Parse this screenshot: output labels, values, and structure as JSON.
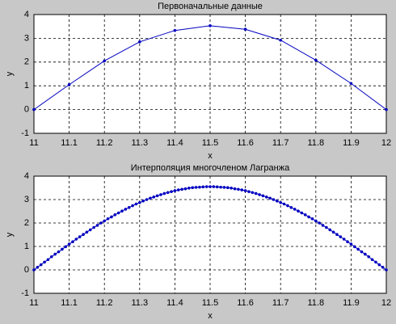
{
  "chart_data": [
    {
      "type": "line",
      "title": "Первоначальные данные",
      "xlabel": "x",
      "ylabel": "y",
      "x": [
        11,
        11.1,
        11.2,
        11.3,
        11.4,
        11.5,
        11.6,
        11.7,
        11.8,
        11.9,
        12
      ],
      "values": [
        0,
        1.05,
        2.05,
        2.85,
        3.33,
        3.53,
        3.38,
        2.92,
        2.08,
        1.1,
        0
      ],
      "color": "#0000c0",
      "marker": true,
      "xlim": [
        11,
        12
      ],
      "ylim": [
        -1,
        4
      ],
      "xticks": [
        11,
        11.1,
        11.2,
        11.3,
        11.4,
        11.5,
        11.6,
        11.7,
        11.8,
        11.9,
        12
      ],
      "yticks": [
        -1,
        0,
        1,
        2,
        3,
        4
      ],
      "grid": true
    },
    {
      "type": "line",
      "title": "Интерполяция многочленом Лагранжа",
      "xlabel": "x",
      "ylabel": "y",
      "x": [
        11,
        11.01,
        11.02,
        11.03,
        11.04,
        11.05,
        11.06,
        11.07,
        11.08,
        11.09,
        11.1,
        11.11,
        11.12,
        11.13,
        11.14,
        11.15,
        11.16,
        11.17,
        11.18,
        11.19,
        11.2,
        11.21,
        11.22,
        11.23,
        11.24,
        11.25,
        11.26,
        11.27,
        11.28,
        11.29,
        11.3,
        11.31,
        11.32,
        11.33,
        11.34,
        11.35,
        11.36,
        11.37,
        11.38,
        11.39,
        11.4,
        11.41,
        11.42,
        11.43,
        11.44,
        11.45,
        11.46,
        11.47,
        11.48,
        11.49,
        11.5,
        11.51,
        11.52,
        11.53,
        11.54,
        11.55,
        11.56,
        11.57,
        11.58,
        11.59,
        11.6,
        11.61,
        11.62,
        11.63,
        11.64,
        11.65,
        11.66,
        11.67,
        11.68,
        11.69,
        11.7,
        11.71,
        11.72,
        11.73,
        11.74,
        11.75,
        11.76,
        11.77,
        11.78,
        11.79,
        11.8,
        11.81,
        11.82,
        11.83,
        11.84,
        11.85,
        11.86,
        11.87,
        11.88,
        11.89,
        11.9,
        11.91,
        11.92,
        11.93,
        11.94,
        11.95,
        11.96,
        11.97,
        11.98,
        11.99,
        12
      ],
      "values": [
        0,
        0.11,
        0.22,
        0.33,
        0.44,
        0.56,
        0.67,
        0.77,
        0.88,
        0.99,
        1.1,
        1.2,
        1.31,
        1.41,
        1.51,
        1.61,
        1.71,
        1.81,
        1.9,
        2.0,
        2.09,
        2.18,
        2.26,
        2.35,
        2.43,
        2.51,
        2.59,
        2.66,
        2.74,
        2.81,
        2.87,
        2.94,
        3.0,
        3.06,
        3.11,
        3.16,
        3.21,
        3.26,
        3.3,
        3.34,
        3.38,
        3.41,
        3.44,
        3.46,
        3.49,
        3.51,
        3.52,
        3.53,
        3.54,
        3.55,
        3.55,
        3.55,
        3.54,
        3.53,
        3.52,
        3.51,
        3.49,
        3.46,
        3.44,
        3.41,
        3.38,
        3.34,
        3.3,
        3.26,
        3.21,
        3.16,
        3.11,
        3.06,
        3.0,
        2.94,
        2.87,
        2.81,
        2.74,
        2.66,
        2.59,
        2.51,
        2.43,
        2.35,
        2.26,
        2.18,
        2.09,
        2.0,
        1.9,
        1.81,
        1.71,
        1.61,
        1.51,
        1.41,
        1.31,
        1.2,
        1.1,
        0.99,
        0.88,
        0.77,
        0.67,
        0.56,
        0.44,
        0.33,
        0.22,
        0.11,
        0
      ],
      "color": "#0000c0",
      "marker": true,
      "xlim": [
        11,
        12
      ],
      "ylim": [
        -1,
        4
      ],
      "xticks": [
        11,
        11.1,
        11.2,
        11.3,
        11.4,
        11.5,
        11.6,
        11.7,
        11.8,
        11.9,
        12
      ],
      "yticks": [
        -1,
        0,
        1,
        2,
        3,
        4
      ],
      "grid": true
    }
  ]
}
